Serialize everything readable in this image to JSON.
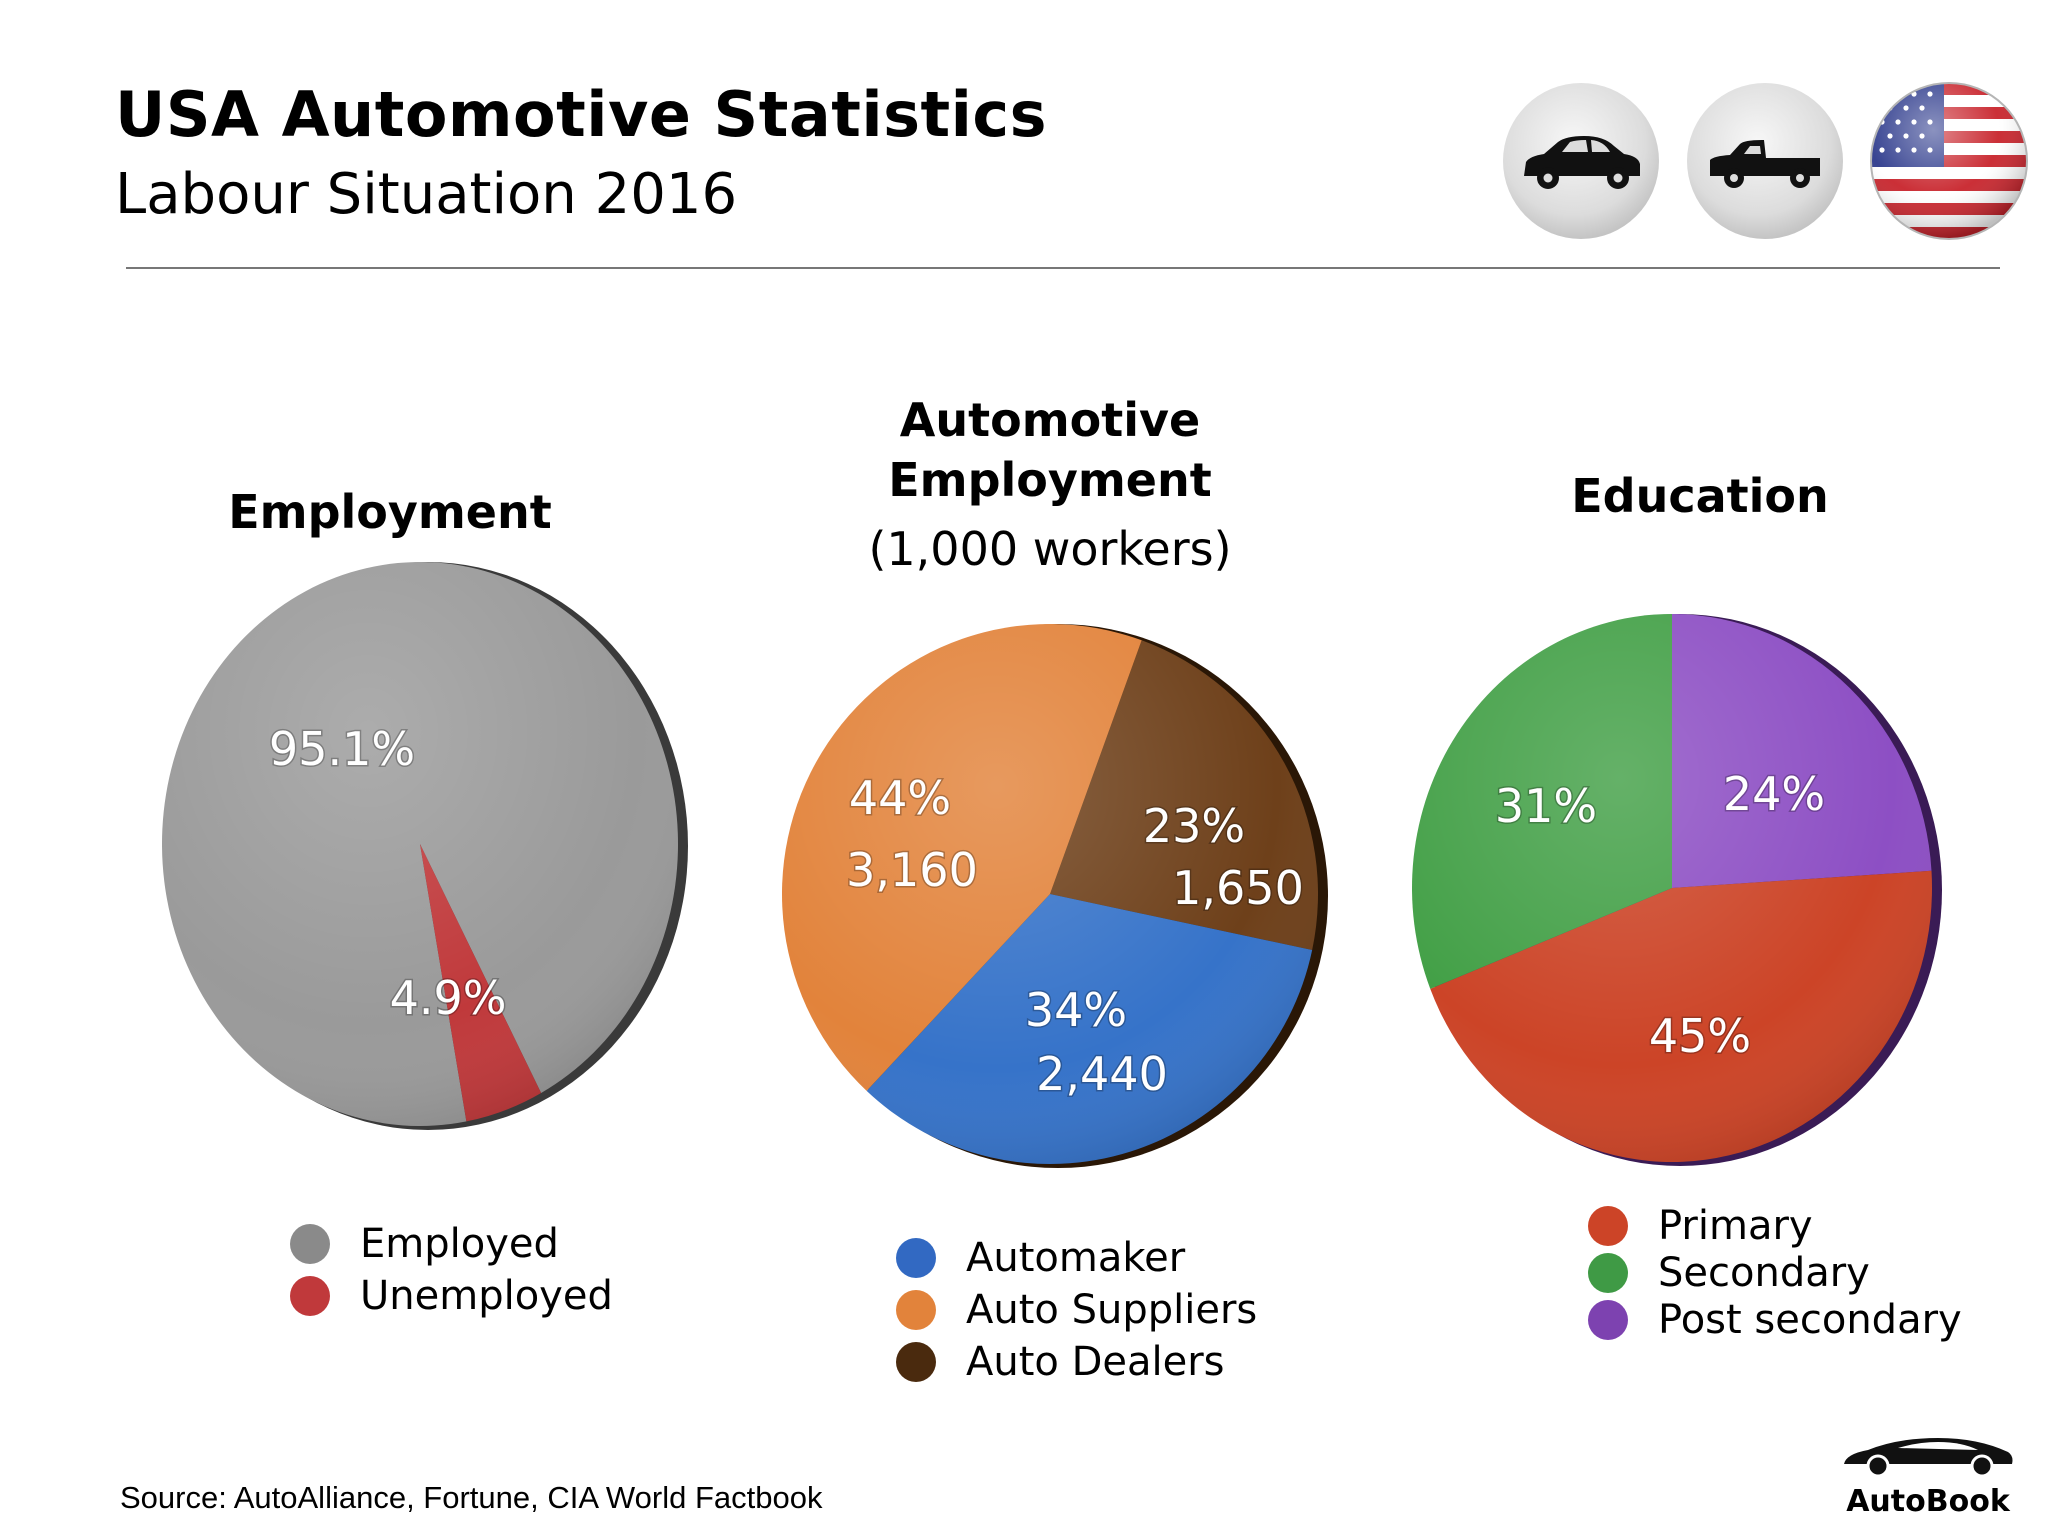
{
  "header": {
    "title": "USA Automotive Statistics",
    "subtitle": "Labour Situation 2016"
  },
  "badges": [
    {
      "icon": "sedan-car-icon"
    },
    {
      "icon": "pickup-truck-icon"
    },
    {
      "icon": "usa-flag-icon"
    }
  ],
  "chart_data": [
    {
      "type": "pie",
      "title": "Employment",
      "labels": [
        "Employed",
        "Unemployed"
      ],
      "values": [
        95.1,
        4.9
      ],
      "label_text": [
        "95.1%",
        "4.9%"
      ],
      "colors": [
        "#9a9a9a",
        "#c0393b"
      ]
    },
    {
      "type": "pie",
      "title": "Automotive Employment",
      "subtitle": "(1,000 workers)",
      "labels": [
        "Automaker",
        "Auto Suppliers",
        "Auto Dealers"
      ],
      "values": [
        34,
        44,
        23
      ],
      "workers": [
        2440,
        3160,
        1650
      ],
      "label_text": [
        [
          "34%",
          "2,440"
        ],
        [
          "44%",
          "3,160"
        ],
        [
          "23%",
          "1,650"
        ]
      ],
      "colors": [
        "#3673c9",
        "#e2833b",
        "#6e401a"
      ]
    },
    {
      "type": "pie",
      "title": "Education",
      "labels": [
        "Primary",
        "Secondary",
        "Post secondary"
      ],
      "values": [
        45,
        31,
        24
      ],
      "label_text": [
        "45%",
        "31%",
        "24%"
      ],
      "colors": [
        "#cc4427",
        "#43a047",
        "#8d4fc4"
      ]
    }
  ],
  "legends": {
    "employment": [
      "Employed",
      "Unemployed"
    ],
    "automotive": [
      "Automaker",
      "Auto Suppliers",
      "Auto Dealers"
    ],
    "education": [
      "Primary",
      "Secondary",
      "Post secondary"
    ]
  },
  "legend_colors": {
    "employment": [
      "#8a8a8a",
      "#c0393b"
    ],
    "automotive": [
      "#3269c2",
      "#e2833b",
      "#4a2a0e"
    ],
    "education": [
      "#cc4427",
      "#3f9a45",
      "#7d42b0"
    ]
  },
  "footer": {
    "source": "Source:  AutoAlliance, Fortune, CIA World Factbook",
    "brand": "AutoBook"
  }
}
